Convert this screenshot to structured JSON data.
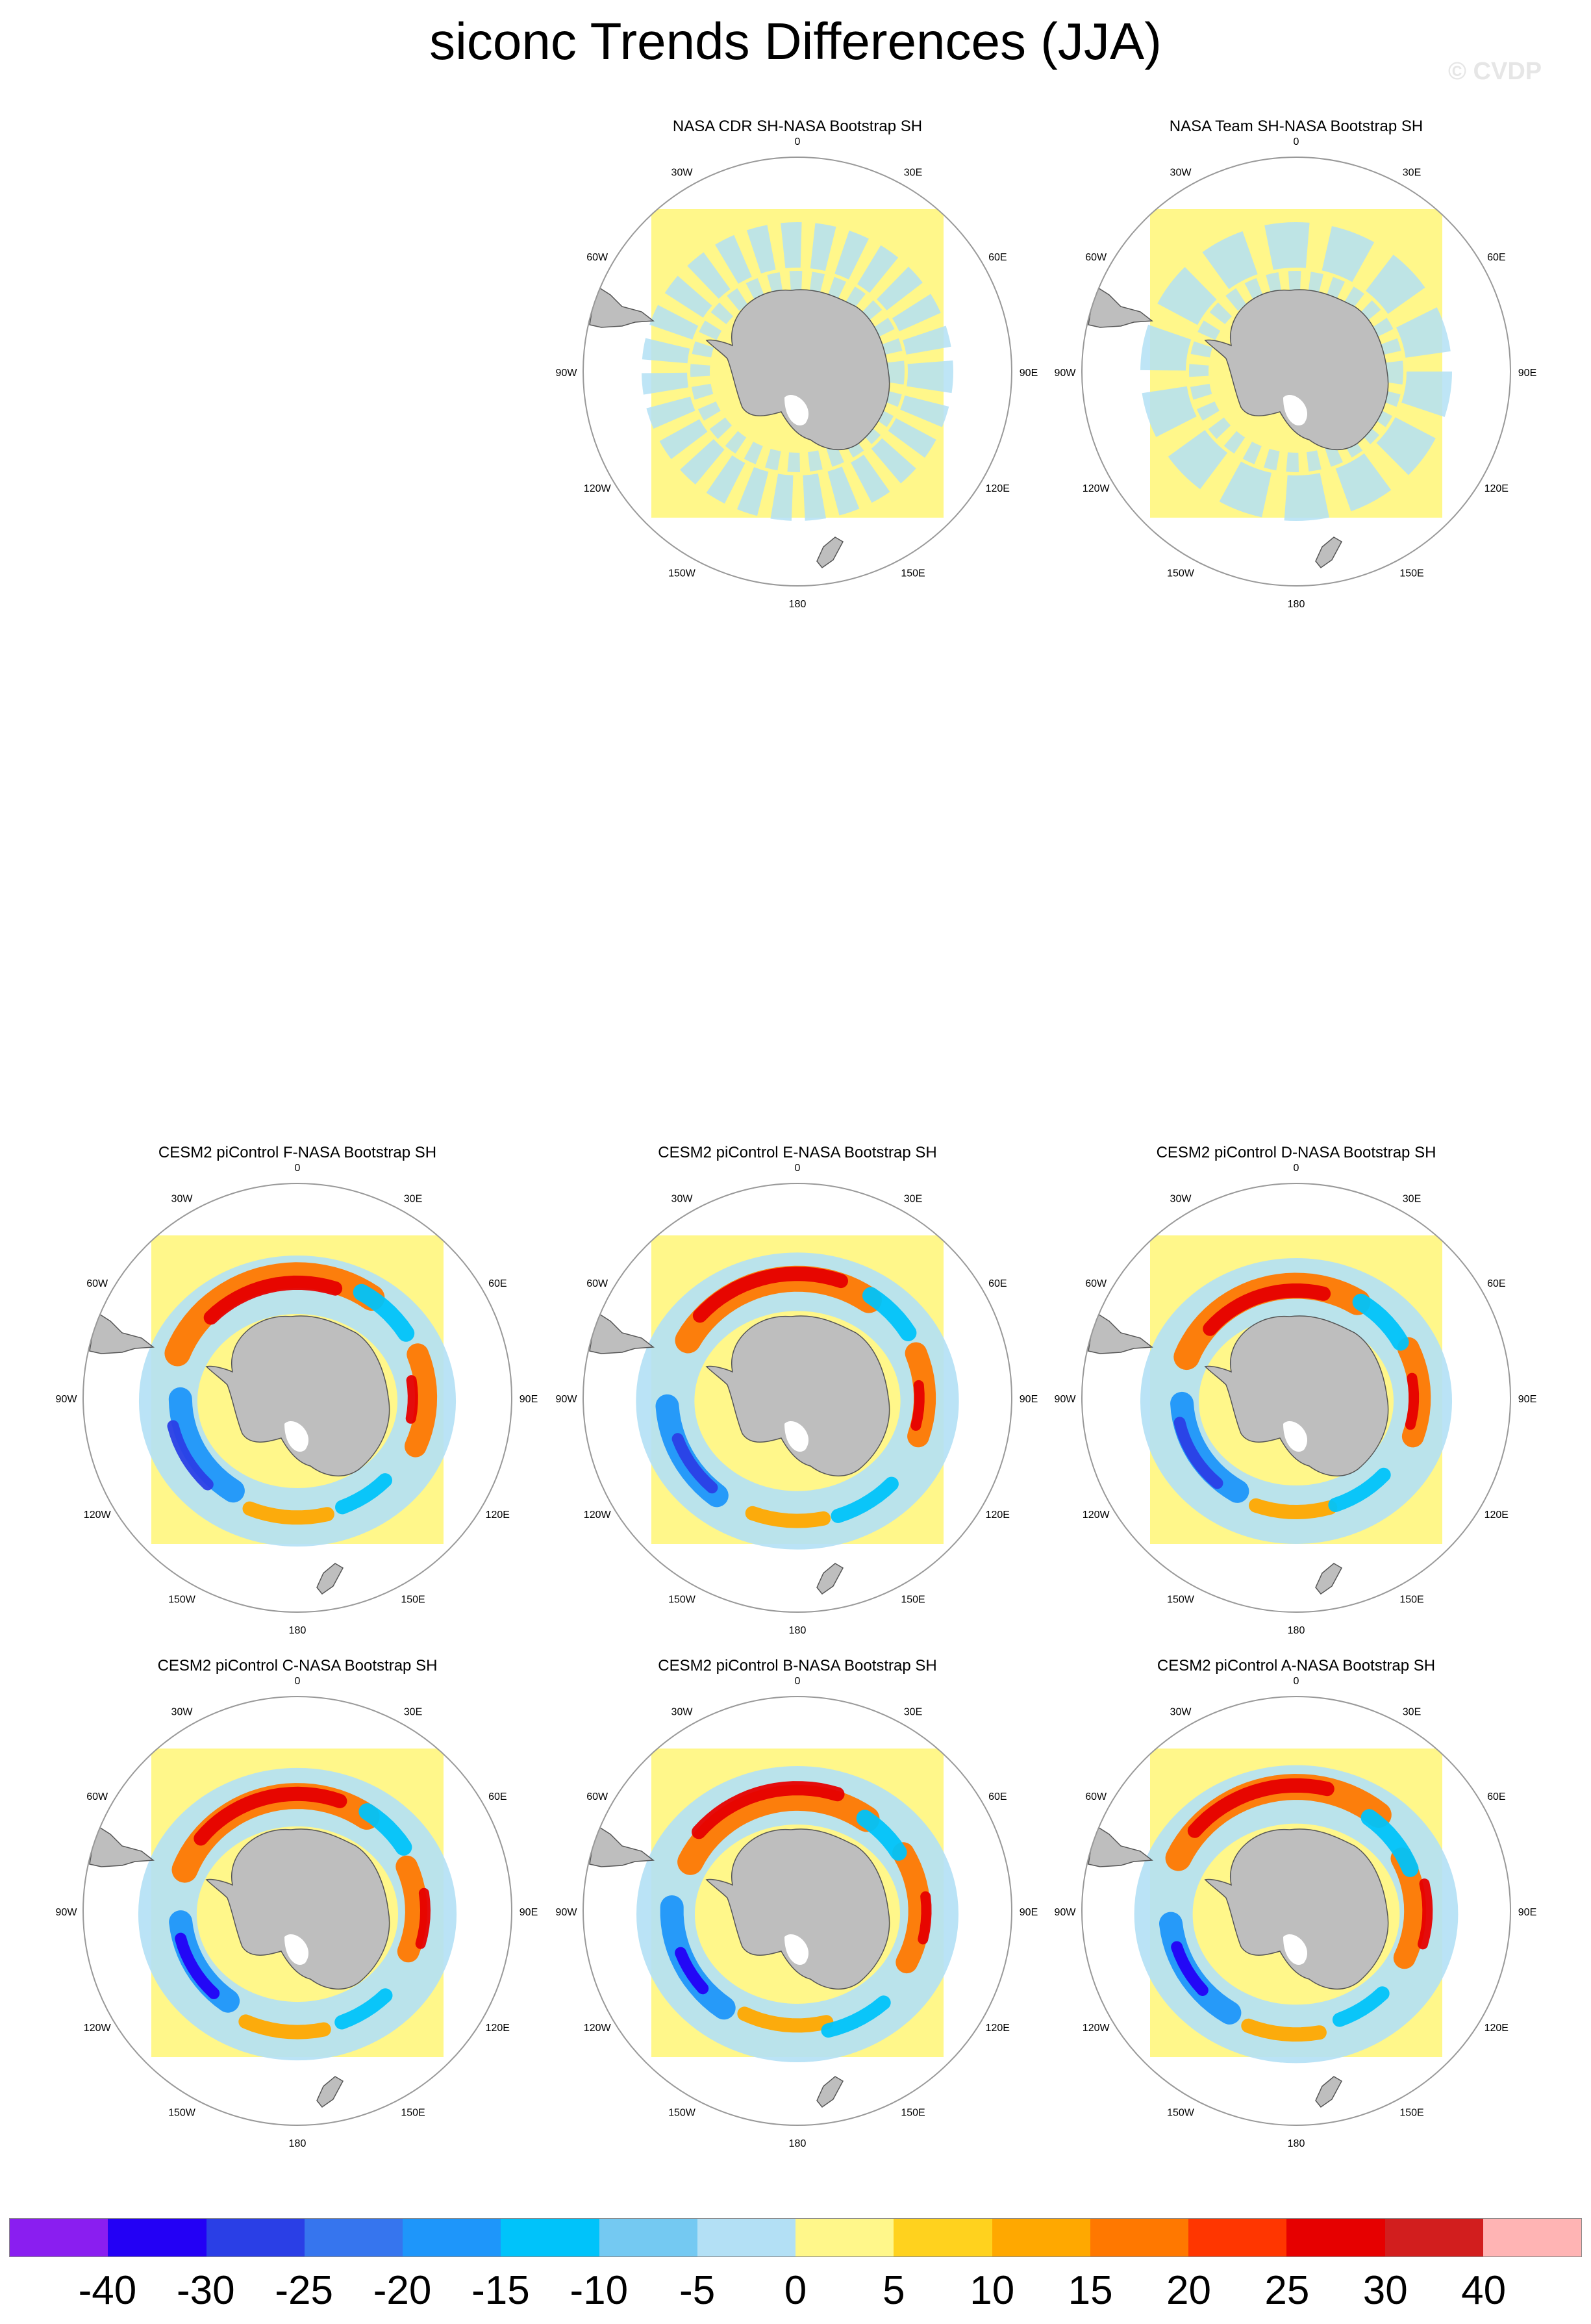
{
  "title": "siconc Trends Differences (JJA)",
  "watermark": "© CVDP",
  "colors": {
    "land": "#bebebe",
    "ocean_neutral": "#fff78a",
    "light_negative": "#b3e0f5",
    "circle": "#999999"
  },
  "lon_labels": [
    "0",
    "30E",
    "60E",
    "90E",
    "120E",
    "150E",
    "180",
    "150W",
    "120W",
    "90W",
    "60W",
    "30W"
  ],
  "panels": [
    {
      "id": "cdr",
      "title": "NASA CDR SH-NASA Bootstrap SH",
      "pattern": "obs"
    },
    {
      "id": "team",
      "title": "NASA Team SH-NASA Bootstrap SH",
      "pattern": "obs"
    },
    {
      "id": "f",
      "title": "CESM2 piControl F-NASA Bootstrap SH",
      "pattern": "model"
    },
    {
      "id": "e",
      "title": "CESM2 piControl E-NASA Bootstrap SH",
      "pattern": "model"
    },
    {
      "id": "d",
      "title": "CESM2 piControl D-NASA Bootstrap SH",
      "pattern": "model"
    },
    {
      "id": "c",
      "title": "CESM2 piControl C-NASA Bootstrap SH",
      "pattern": "model"
    },
    {
      "id": "b",
      "title": "CESM2 piControl B-NASA Bootstrap SH",
      "pattern": "model"
    },
    {
      "id": "a",
      "title": "CESM2 piControl A-NASA Bootstrap SH",
      "pattern": "model"
    }
  ],
  "colorbar": {
    "colors": [
      "#8a1ef0",
      "#2300f5",
      "#2a3fe6",
      "#3675ee",
      "#1e96fa",
      "#00c3fa",
      "#74c9f2",
      "#b3e0f5",
      "#fff78a",
      "#ffd21e",
      "#ffa800",
      "#ff7800",
      "#ff3600",
      "#e60000",
      "#d21e1e",
      "#ffb4b4"
    ],
    "labels": [
      "-40",
      "-30",
      "-25",
      "-20",
      "-15",
      "-10",
      "-5",
      "0",
      "5",
      "10",
      "15",
      "20",
      "25",
      "30",
      "40"
    ]
  }
}
